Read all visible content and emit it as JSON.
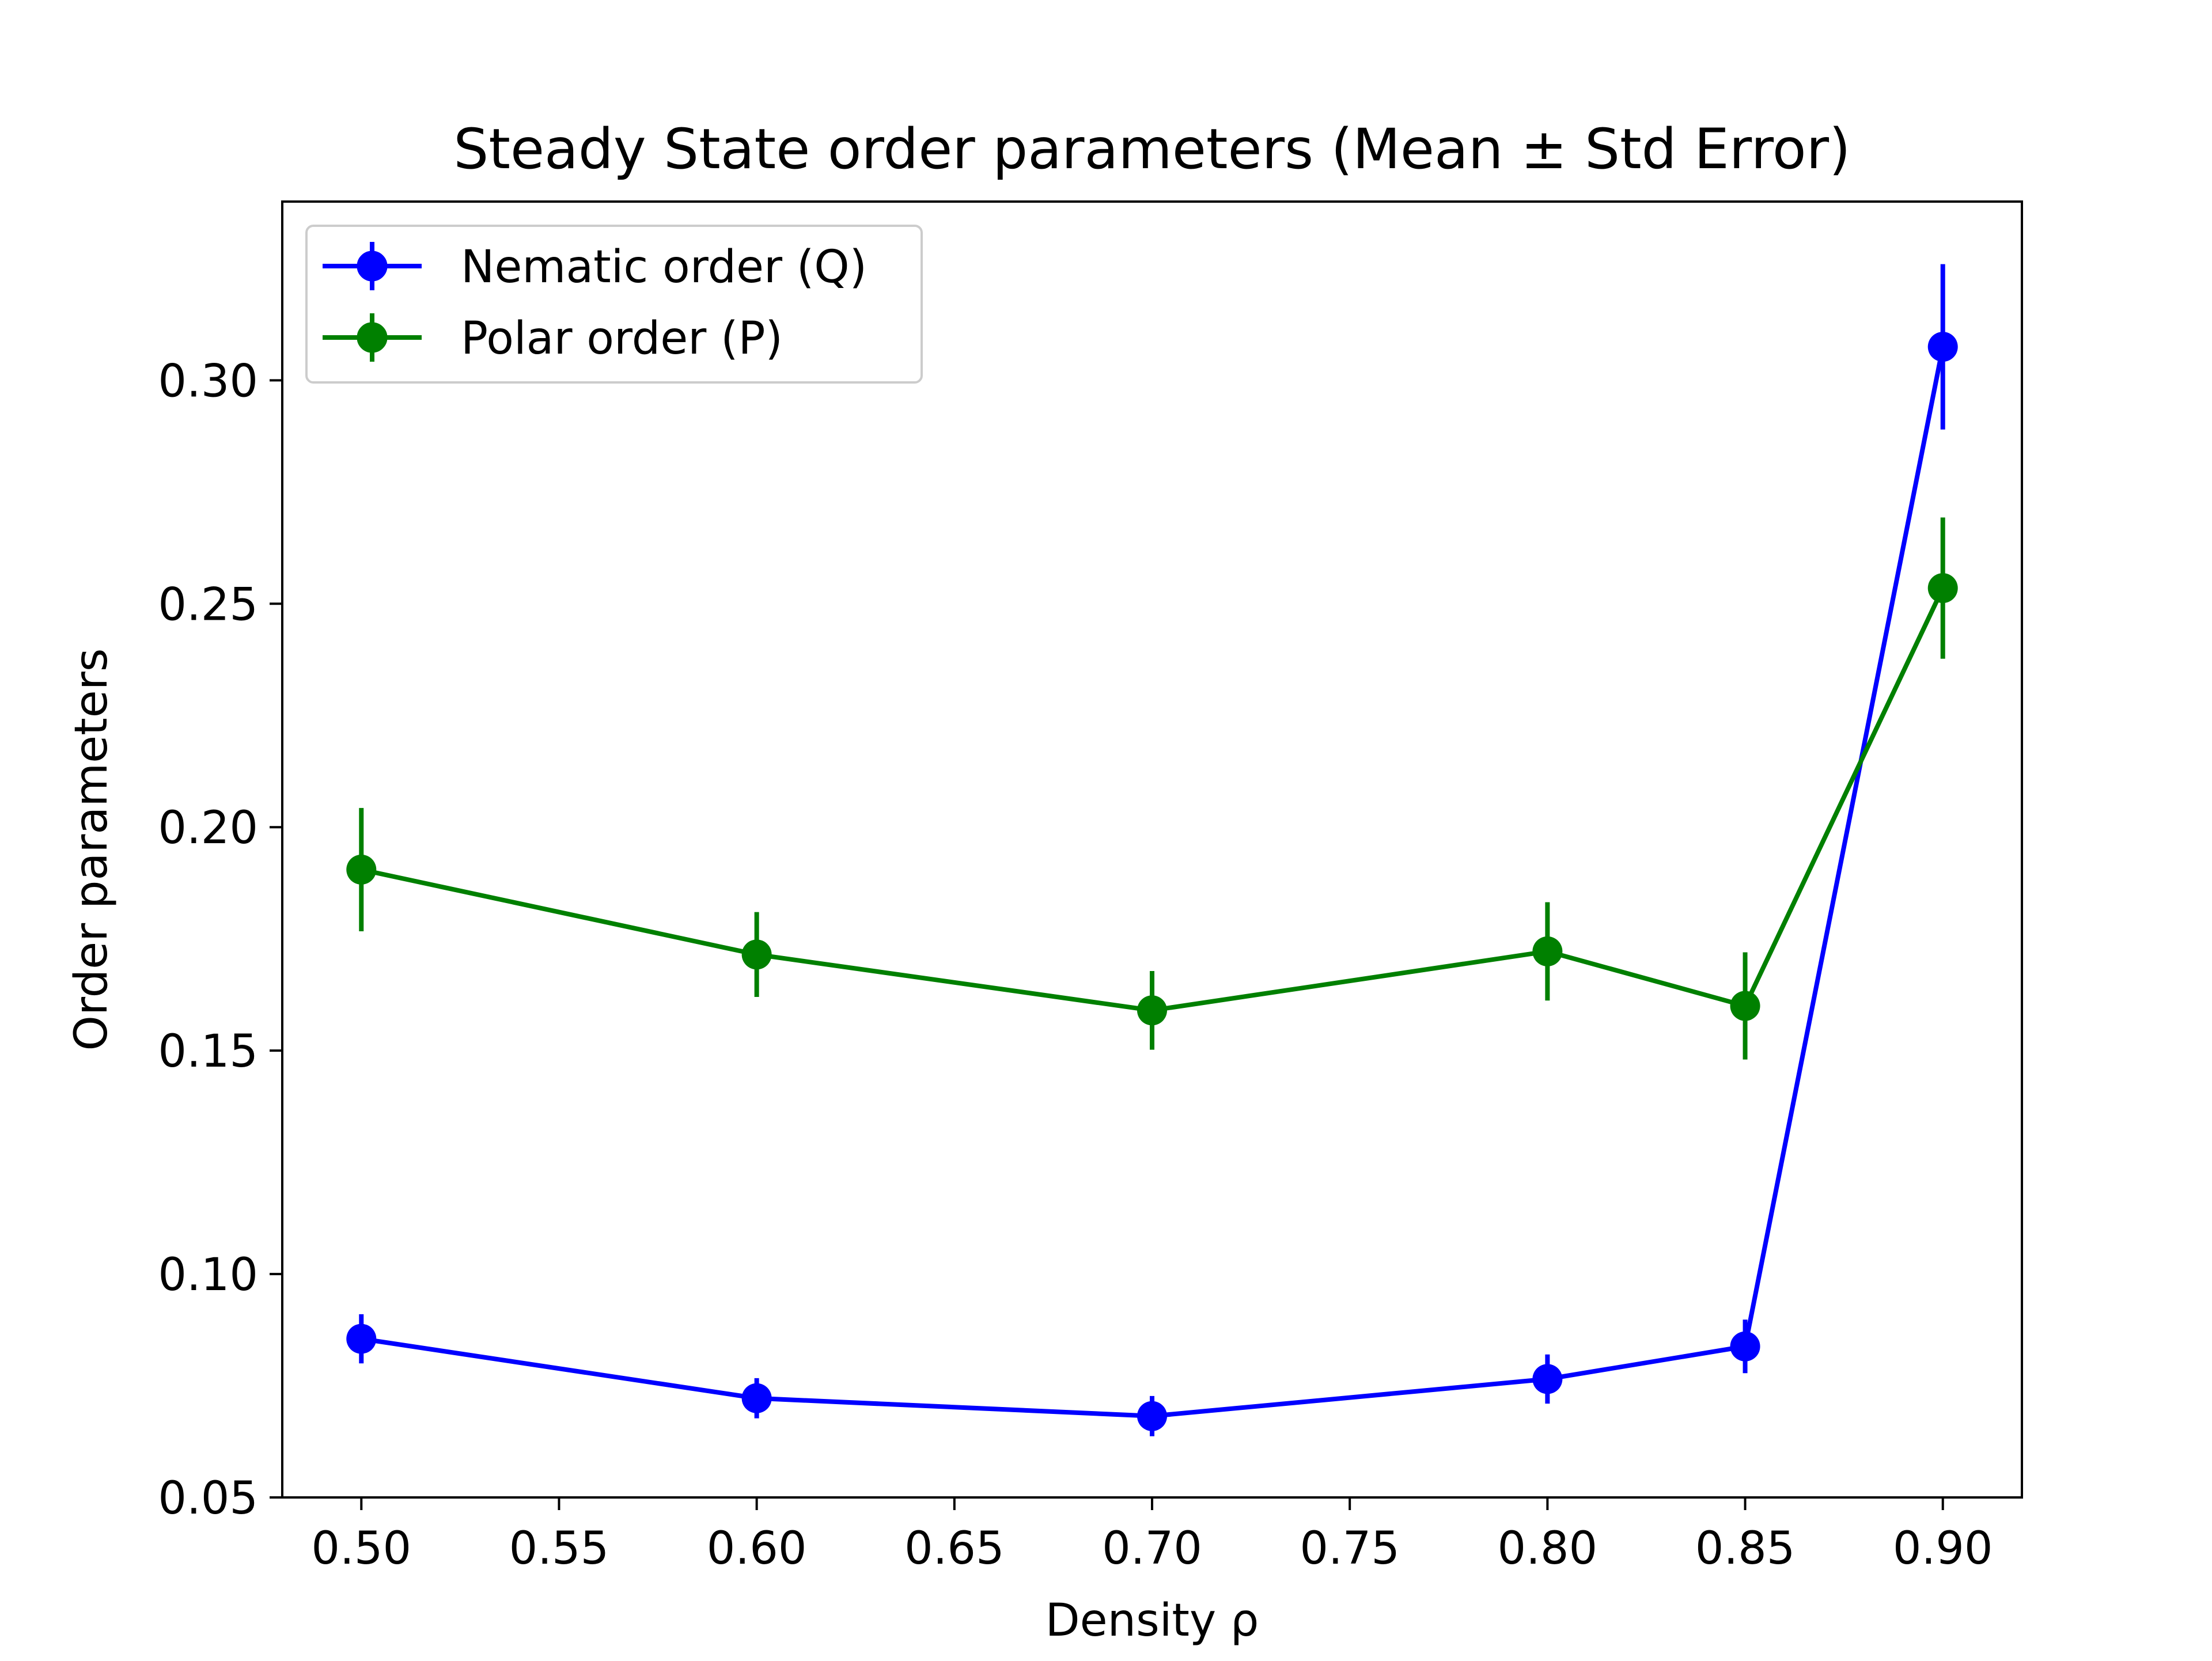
{
  "chart_data": {
    "type": "line",
    "title": "Steady State order parameters (Mean ± Std Error)",
    "xlabel": "Density ρ",
    "ylabel": "Order parameters",
    "xlim": [
      0.48,
      0.92
    ],
    "ylim": [
      0.05,
      0.34
    ],
    "xticks": [
      0.5,
      0.55,
      0.6,
      0.65,
      0.7,
      0.75,
      0.8,
      0.85,
      0.9
    ],
    "xtick_labels": [
      "0.50",
      "0.55",
      "0.60",
      "0.65",
      "0.70",
      "0.75",
      "0.80",
      "0.85",
      "0.90"
    ],
    "yticks": [
      0.05,
      0.1,
      0.15,
      0.2,
      0.25,
      0.3
    ],
    "ytick_labels": [
      "0.05",
      "0.10",
      "0.15",
      "0.20",
      "0.25",
      "0.30"
    ],
    "grid": false,
    "legend_position": "top-left",
    "x": [
      0.5,
      0.6,
      0.7,
      0.8,
      0.85,
      0.9
    ],
    "series": [
      {
        "name": "Nematic order (Q)",
        "color": "#0000ff",
        "values": [
          0.0855,
          0.0722,
          0.0682,
          0.0765,
          0.0838,
          0.3075
        ],
        "errors": [
          0.0055,
          0.0045,
          0.0045,
          0.0055,
          0.006,
          0.0185
        ]
      },
      {
        "name": "Polar order (P)",
        "color": "#008000",
        "values": [
          0.1905,
          0.1715,
          0.159,
          0.1722,
          0.16,
          0.2535
        ],
        "errors": [
          0.0138,
          0.0095,
          0.0088,
          0.011,
          0.012,
          0.0158
        ]
      }
    ]
  }
}
